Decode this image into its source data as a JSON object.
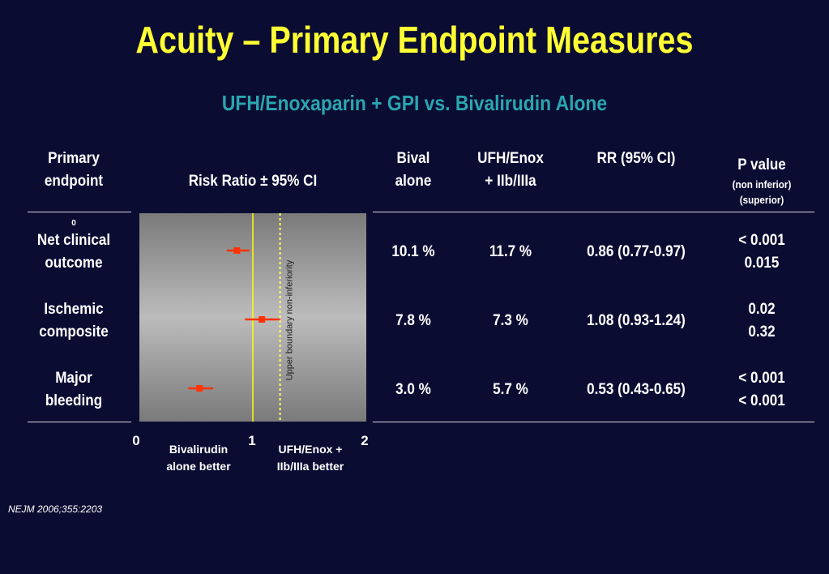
{
  "title": "Acuity – Primary Endpoint Measures",
  "subtitle": "UFH/Enoxaparin + GPI vs. Bivalirudin Alone",
  "headers": {
    "endpoint": [
      "Primary",
      "endpoint"
    ],
    "risk_ratio": "Risk Ratio ± 95% CI",
    "bival": [
      "Bival",
      "alone"
    ],
    "ufh": [
      "UFH/Enox",
      "+ IIb/IIIa"
    ],
    "rr": "RR (95% CI)",
    "pvalue": "P value",
    "pvalue_sub1": "(non inferior)",
    "pvalue_sub2": "(superior)"
  },
  "rows": [
    {
      "endpoint": [
        "Net clinical",
        "outcome"
      ],
      "bival": "10.1 %",
      "ufh": "11.7 %",
      "rr": "0.86 (0.77-0.97)",
      "p_noninf": "< 0.001",
      "p_sup": "0.015"
    },
    {
      "endpoint": [
        "Ischemic",
        "composite"
      ],
      "bival": "7.8 %",
      "ufh": "7.3 %",
      "rr": "1.08 (0.93-1.24)",
      "p_noninf": "0.02",
      "p_sup": "0.32"
    },
    {
      "endpoint": [
        "Major",
        "bleeding"
      ],
      "bival": "3.0 %",
      "ufh": "5.7 %",
      "rr": "0.53 (0.43-0.65)",
      "p_noninf": "< 0.001",
      "p_sup": "< 0.001"
    }
  ],
  "chart_data": {
    "type": "scatter",
    "xlim": [
      0,
      2
    ],
    "x_ticks": [
      "0",
      "1",
      "2"
    ],
    "stray_label": "0",
    "points": [
      {
        "rr": 0.86,
        "lo": 0.77,
        "hi": 0.97
      },
      {
        "rr": 1.08,
        "lo": 0.93,
        "hi": 1.24
      },
      {
        "rr": 0.53,
        "lo": 0.43,
        "hi": 0.65
      }
    ],
    "reference_line": 1,
    "noninferiority_boundary": 1.24,
    "boundary_label": "Upper boundary non-inferiority",
    "left_label": [
      "Bivalirudin",
      "alone better"
    ],
    "right_label": [
      "UFH/Enox +",
      "IIb/IIIa better"
    ],
    "colors": {
      "marker": "#ff3300",
      "reference": "#ffff00",
      "boundary": "#ffff66",
      "panel_center": "#bcbcbc",
      "panel_edge": "#7a7a7a"
    }
  },
  "reference": "NEJM 2006;355:2203"
}
